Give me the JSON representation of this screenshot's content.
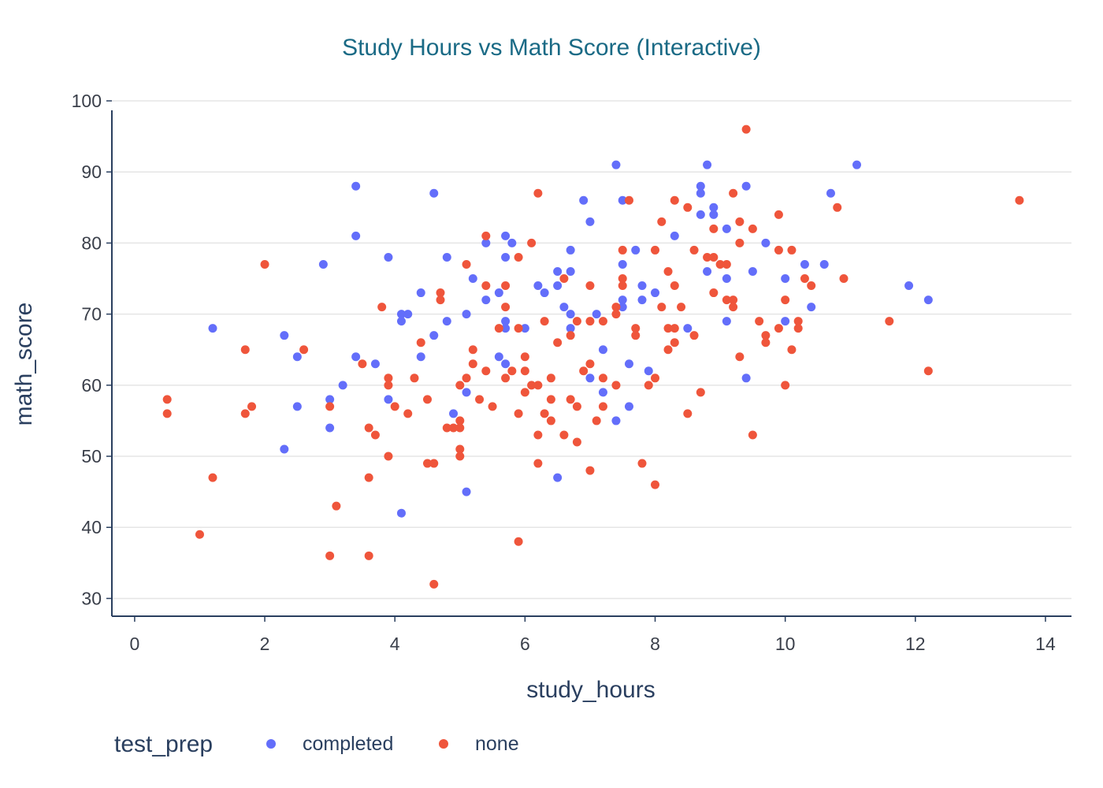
{
  "chart_data": {
    "type": "scatter",
    "title": "Study Hours vs Math Score (Interactive)",
    "xlabel": "study_hours",
    "ylabel": "math_score",
    "xlim": [
      -0.35,
      14.4
    ],
    "ylim": [
      27.5,
      100
    ],
    "xticks": [
      0,
      2,
      4,
      6,
      8,
      10,
      12,
      14
    ],
    "yticks": [
      30,
      40,
      50,
      60,
      70,
      80,
      90,
      100
    ],
    "grid": "horizontal",
    "legend": {
      "title": "test_prep",
      "placement": "bottom-left"
    },
    "series": [
      {
        "name": "completed",
        "color": "#636efa",
        "points": [
          [
            1.2,
            68
          ],
          [
            2.3,
            67
          ],
          [
            2.3,
            51
          ],
          [
            2.5,
            64
          ],
          [
            2.5,
            57
          ],
          [
            2.9,
            77
          ],
          [
            3.0,
            58
          ],
          [
            3.0,
            54
          ],
          [
            3.2,
            60
          ],
          [
            3.4,
            88
          ],
          [
            3.4,
            81
          ],
          [
            3.4,
            64
          ],
          [
            3.7,
            63
          ],
          [
            3.9,
            78
          ],
          [
            3.9,
            58
          ],
          [
            4.1,
            70
          ],
          [
            4.1,
            69
          ],
          [
            4.1,
            42
          ],
          [
            4.2,
            70
          ],
          [
            4.4,
            73
          ],
          [
            4.4,
            64
          ],
          [
            4.6,
            87
          ],
          [
            4.6,
            67
          ],
          [
            4.8,
            78
          ],
          [
            4.8,
            69
          ],
          [
            4.9,
            56
          ],
          [
            5.1,
            70
          ],
          [
            5.1,
            59
          ],
          [
            5.1,
            45
          ],
          [
            5.2,
            75
          ],
          [
            5.4,
            80
          ],
          [
            5.4,
            72
          ],
          [
            5.6,
            73
          ],
          [
            5.6,
            64
          ],
          [
            5.7,
            81
          ],
          [
            5.7,
            78
          ],
          [
            5.7,
            69
          ],
          [
            5.7,
            68
          ],
          [
            5.7,
            63
          ],
          [
            5.8,
            80
          ],
          [
            6.0,
            68
          ],
          [
            6.2,
            74
          ],
          [
            6.3,
            73
          ],
          [
            6.5,
            76
          ],
          [
            6.5,
            74
          ],
          [
            6.5,
            47
          ],
          [
            6.6,
            71
          ],
          [
            6.7,
            79
          ],
          [
            6.7,
            76
          ],
          [
            6.7,
            70
          ],
          [
            6.7,
            68
          ],
          [
            6.9,
            86
          ],
          [
            7.0,
            83
          ],
          [
            7.0,
            61
          ],
          [
            7.1,
            70
          ],
          [
            7.2,
            65
          ],
          [
            7.2,
            59
          ],
          [
            7.4,
            91
          ],
          [
            7.4,
            55
          ],
          [
            7.5,
            86
          ],
          [
            7.5,
            77
          ],
          [
            7.5,
            72
          ],
          [
            7.5,
            71
          ],
          [
            7.6,
            63
          ],
          [
            7.6,
            57
          ],
          [
            7.7,
            79
          ],
          [
            7.8,
            74
          ],
          [
            7.8,
            72
          ],
          [
            7.9,
            62
          ],
          [
            8.0,
            73
          ],
          [
            8.3,
            81
          ],
          [
            8.5,
            68
          ],
          [
            8.7,
            88
          ],
          [
            8.7,
            87
          ],
          [
            8.7,
            84
          ],
          [
            8.8,
            91
          ],
          [
            8.8,
            76
          ],
          [
            8.9,
            85
          ],
          [
            8.9,
            84
          ],
          [
            9.1,
            82
          ],
          [
            9.1,
            75
          ],
          [
            9.1,
            69
          ],
          [
            9.4,
            88
          ],
          [
            9.4,
            61
          ],
          [
            9.5,
            76
          ],
          [
            9.7,
            80
          ],
          [
            10.0,
            75
          ],
          [
            10.0,
            69
          ],
          [
            10.3,
            77
          ],
          [
            10.4,
            71
          ],
          [
            10.6,
            77
          ],
          [
            10.7,
            87
          ],
          [
            11.1,
            91
          ],
          [
            11.9,
            74
          ],
          [
            12.2,
            72
          ]
        ]
      },
      {
        "name": "none",
        "color": "#ef553b",
        "points": [
          [
            0.5,
            58
          ],
          [
            0.5,
            56
          ],
          [
            1.0,
            39
          ],
          [
            1.2,
            47
          ],
          [
            1.7,
            65
          ],
          [
            1.7,
            56
          ],
          [
            1.8,
            57
          ],
          [
            2.0,
            77
          ],
          [
            2.6,
            65
          ],
          [
            3.0,
            57
          ],
          [
            3.0,
            36
          ],
          [
            3.1,
            43
          ],
          [
            3.5,
            63
          ],
          [
            3.6,
            54
          ],
          [
            3.6,
            47
          ],
          [
            3.6,
            36
          ],
          [
            3.7,
            53
          ],
          [
            3.8,
            71
          ],
          [
            3.9,
            61
          ],
          [
            3.9,
            60
          ],
          [
            3.9,
            50
          ],
          [
            4.0,
            57
          ],
          [
            4.2,
            56
          ],
          [
            4.3,
            61
          ],
          [
            4.4,
            66
          ],
          [
            4.5,
            58
          ],
          [
            4.5,
            49
          ],
          [
            4.6,
            49
          ],
          [
            4.6,
            32
          ],
          [
            4.7,
            73
          ],
          [
            4.7,
            72
          ],
          [
            4.8,
            54
          ],
          [
            4.9,
            54
          ],
          [
            5.0,
            60
          ],
          [
            5.0,
            55
          ],
          [
            5.0,
            54
          ],
          [
            5.0,
            51
          ],
          [
            5.0,
            50
          ],
          [
            5.1,
            77
          ],
          [
            5.1,
            61
          ],
          [
            5.2,
            65
          ],
          [
            5.2,
            63
          ],
          [
            5.3,
            58
          ],
          [
            5.4,
            81
          ],
          [
            5.4,
            74
          ],
          [
            5.4,
            62
          ],
          [
            5.5,
            57
          ],
          [
            5.6,
            68
          ],
          [
            5.7,
            74
          ],
          [
            5.7,
            71
          ],
          [
            5.7,
            61
          ],
          [
            5.8,
            62
          ],
          [
            5.9,
            78
          ],
          [
            5.9,
            68
          ],
          [
            5.9,
            56
          ],
          [
            5.9,
            38
          ],
          [
            6.0,
            64
          ],
          [
            6.0,
            62
          ],
          [
            6.0,
            59
          ],
          [
            6.1,
            80
          ],
          [
            6.1,
            60
          ],
          [
            6.2,
            87
          ],
          [
            6.2,
            60
          ],
          [
            6.2,
            53
          ],
          [
            6.2,
            49
          ],
          [
            6.3,
            69
          ],
          [
            6.3,
            56
          ],
          [
            6.4,
            61
          ],
          [
            6.4,
            58
          ],
          [
            6.4,
            55
          ],
          [
            6.5,
            66
          ],
          [
            6.6,
            75
          ],
          [
            6.6,
            53
          ],
          [
            6.7,
            67
          ],
          [
            6.7,
            58
          ],
          [
            6.8,
            69
          ],
          [
            6.8,
            57
          ],
          [
            6.8,
            52
          ],
          [
            6.9,
            62
          ],
          [
            7.0,
            74
          ],
          [
            7.0,
            69
          ],
          [
            7.0,
            63
          ],
          [
            7.0,
            48
          ],
          [
            7.1,
            55
          ],
          [
            7.2,
            69
          ],
          [
            7.2,
            61
          ],
          [
            7.2,
            57
          ],
          [
            7.4,
            71
          ],
          [
            7.4,
            70
          ],
          [
            7.4,
            60
          ],
          [
            7.5,
            79
          ],
          [
            7.5,
            75
          ],
          [
            7.5,
            74
          ],
          [
            7.6,
            86
          ],
          [
            7.7,
            68
          ],
          [
            7.7,
            67
          ],
          [
            7.8,
            49
          ],
          [
            7.9,
            60
          ],
          [
            8.0,
            79
          ],
          [
            8.0,
            61
          ],
          [
            8.0,
            46
          ],
          [
            8.1,
            83
          ],
          [
            8.1,
            71
          ],
          [
            8.2,
            76
          ],
          [
            8.2,
            68
          ],
          [
            8.2,
            65
          ],
          [
            8.3,
            86
          ],
          [
            8.3,
            74
          ],
          [
            8.3,
            68
          ],
          [
            8.3,
            66
          ],
          [
            8.4,
            71
          ],
          [
            8.5,
            85
          ],
          [
            8.5,
            56
          ],
          [
            8.6,
            79
          ],
          [
            8.6,
            67
          ],
          [
            8.7,
            59
          ],
          [
            8.8,
            78
          ],
          [
            8.9,
            82
          ],
          [
            8.9,
            78
          ],
          [
            8.9,
            73
          ],
          [
            9.0,
            77
          ],
          [
            9.1,
            77
          ],
          [
            9.1,
            72
          ],
          [
            9.2,
            87
          ],
          [
            9.2,
            72
          ],
          [
            9.2,
            71
          ],
          [
            9.3,
            83
          ],
          [
            9.3,
            80
          ],
          [
            9.3,
            64
          ],
          [
            9.4,
            96
          ],
          [
            9.5,
            82
          ],
          [
            9.5,
            53
          ],
          [
            9.6,
            69
          ],
          [
            9.7,
            67
          ],
          [
            9.7,
            66
          ],
          [
            9.9,
            84
          ],
          [
            9.9,
            79
          ],
          [
            9.9,
            68
          ],
          [
            10.0,
            72
          ],
          [
            10.0,
            60
          ],
          [
            10.1,
            79
          ],
          [
            10.1,
            65
          ],
          [
            10.2,
            69
          ],
          [
            10.2,
            68
          ],
          [
            10.3,
            75
          ],
          [
            10.4,
            74
          ],
          [
            10.8,
            85
          ],
          [
            10.9,
            75
          ],
          [
            11.6,
            69
          ],
          [
            12.2,
            62
          ],
          [
            13.6,
            86
          ]
        ]
      }
    ]
  }
}
